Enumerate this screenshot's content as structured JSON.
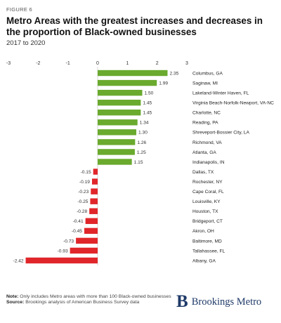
{
  "figure_label": "FIGURE 6",
  "footer": {
    "note_label": "Note:",
    "note_text": "Only includes Metro areas with more than 100 Black-owned businesses",
    "source_label": "Source:",
    "source_text": "Brookings analysis of American Business Survey data"
  },
  "logo": {
    "mark": "B",
    "text": "Brookings Metro"
  },
  "colors": {
    "positive": "#6aaa2e",
    "negative": "#e0262a",
    "axis": "#cfcfcf"
  },
  "chart_data": {
    "type": "bar",
    "orientation": "horizontal",
    "title": "Metro Areas with the greatest increases and decreases in the proportion of Black-owned businesses",
    "subtitle": "2017 to 2020",
    "xlim": [
      -3,
      3
    ],
    "x_ticks": [
      "-3",
      "-2",
      "-1",
      "0",
      "1",
      "2",
      "3"
    ],
    "x_tick_values": [
      -3,
      -2,
      -1,
      0,
      1,
      2,
      3
    ],
    "categories": [
      "Columbus, GA",
      "Saginaw, MI",
      "Lakeland-Winter Haven, FL",
      "Virginia Beach-Norfolk-Newport, VA-NC",
      "Charlotte, NC",
      "Reading, PA",
      "Shreveport-Bossier City, LA",
      "Richmond, VA",
      "Atlanta, GA",
      "Indianapolis, IN",
      "Dallas, TX",
      "Rochester, NY",
      "Cape Coral, FL",
      "Louisville, KY",
      "Houston, TX",
      "Bridgeport, CT",
      "Akron, OH",
      "Baltimore, MD",
      "Tallahassee, FL",
      "Albany, GA"
    ],
    "values": [
      2.35,
      1.99,
      1.5,
      1.45,
      1.45,
      1.34,
      1.3,
      1.26,
      1.25,
      1.15,
      -0.15,
      -0.19,
      -0.23,
      -0.25,
      -0.28,
      -0.41,
      -0.45,
      -0.73,
      -0.93,
      -2.42
    ],
    "value_labels": [
      "2.35",
      "1.99",
      "1.50",
      "1.45",
      "1.45",
      "1.34",
      "1.30",
      "1.26",
      "1.25",
      "1.15",
      "-0.15",
      "-0.19",
      "-0.23",
      "-0.25",
      "-0.28",
      "-0.41",
      "-0.45",
      "-0.73",
      "-0.93",
      "-2.42"
    ]
  }
}
